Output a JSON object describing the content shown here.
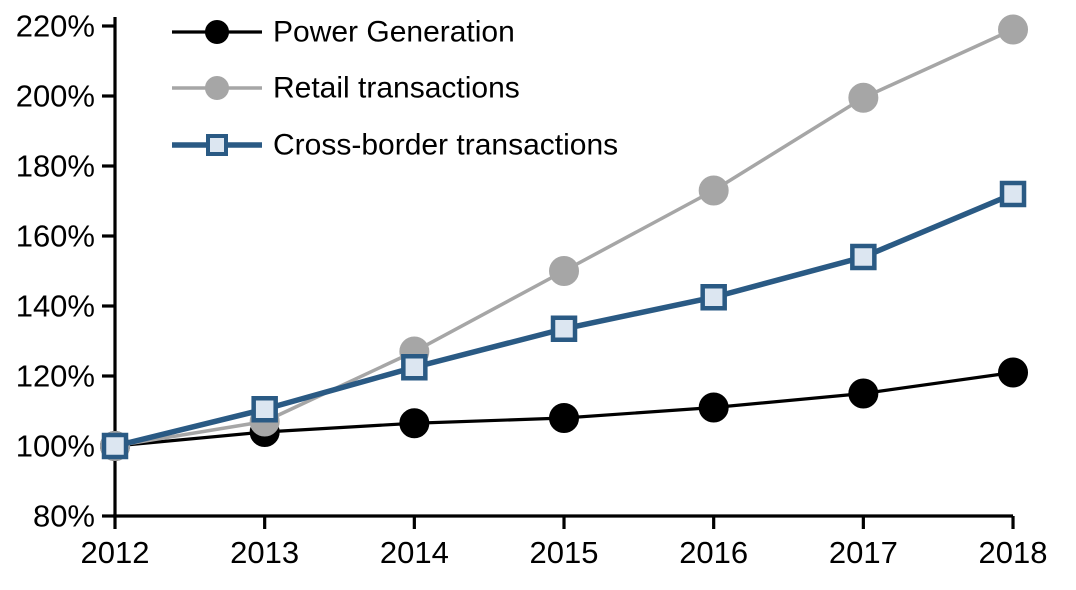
{
  "chart_data": {
    "type": "line",
    "title": "",
    "xlabel": "",
    "ylabel": "",
    "x": [
      2012,
      2013,
      2014,
      2015,
      2016,
      2017,
      2018
    ],
    "x_labels": [
      "2012",
      "2013",
      "2014",
      "2015",
      "2016",
      "2017",
      "2018"
    ],
    "ylim": [
      80,
      220
    ],
    "y_tick_step": 20,
    "y_ticks": [
      {
        "value": 220,
        "label": "220%"
      },
      {
        "value": 200,
        "label": "200%"
      },
      {
        "value": 180,
        "label": "180%"
      },
      {
        "value": 160,
        "label": "160%"
      },
      {
        "value": 140,
        "label": "140%"
      },
      {
        "value": 120,
        "label": "120%"
      },
      {
        "value": 100,
        "label": "100%"
      },
      {
        "value": 80,
        "label": "80%"
      }
    ],
    "grid": false,
    "legend_position": "top-left-inside",
    "axis_color": "#000000",
    "background_color": "#ffffff",
    "series": [
      {
        "name": "Power Generation",
        "color": "#000000",
        "marker": "circle",
        "marker_fill": "#000000",
        "marker_stroke": "#000000",
        "line_width": 3.2,
        "values": [
          100,
          104,
          106.5,
          108,
          111,
          115,
          121
        ]
      },
      {
        "name": "Retail transactions",
        "color": "#a6a6a6",
        "marker": "circle",
        "marker_fill": "#a6a6a6",
        "marker_stroke": "#a6a6a6",
        "line_width": 3.5,
        "values": [
          100,
          107,
          127,
          150,
          173,
          199.5,
          219
        ]
      },
      {
        "name": "Cross-border transactions",
        "color": "#2a5a84",
        "marker": "square",
        "marker_fill": "#dce6f1",
        "marker_stroke": "#2a5a84",
        "line_width": 5.5,
        "values": [
          100,
          110.5,
          122.5,
          133.5,
          142.5,
          154,
          172
        ]
      }
    ]
  }
}
